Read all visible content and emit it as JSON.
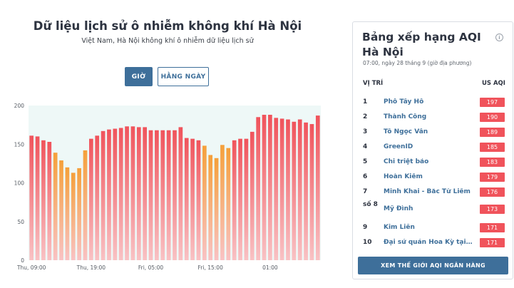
{
  "header": {
    "title": "Dữ liệu lịch sử ô nhiễm không khí Hà Nội",
    "subtitle": "Việt Nam, Hà Nội không khí ô nhiễm dữ liệu lịch sử"
  },
  "toggle": {
    "hour_label": "GIỜ",
    "day_label": "HẰNG NGÀY",
    "active": "hour"
  },
  "chart_data": {
    "type": "bar",
    "title": "",
    "xlabel": "",
    "ylabel": "",
    "ylim": [
      0,
      200
    ],
    "yticks": [
      0,
      50,
      100,
      150,
      200
    ],
    "x_tick_labels": [
      {
        "label": "Thu, 09:00",
        "index": 0
      },
      {
        "label": "Thu, 19:00",
        "index": 10
      },
      {
        "label": "Fri, 05:00",
        "index": 20
      },
      {
        "label": "Fri, 15:00",
        "index": 30
      },
      {
        "label": "01:00",
        "index": 40
      }
    ],
    "values": [
      161,
      160,
      155,
      153,
      139,
      129,
      120,
      113,
      119,
      142,
      157,
      161,
      167,
      169,
      170,
      171,
      173,
      173,
      172,
      172,
      168,
      168,
      168,
      168,
      168,
      172,
      158,
      157,
      155,
      148,
      136,
      132,
      149,
      145,
      155,
      157,
      157,
      166,
      185,
      188,
      188,
      184,
      183,
      182,
      179,
      182,
      178,
      176,
      187
    ],
    "grid": false,
    "legend": "none",
    "colors": {
      "red": "#f0535b",
      "orange": "#f5a03a",
      "background": "#eef8f7"
    }
  },
  "ranking": {
    "title": "Bảng xếp hạng AQI Hà Nội",
    "info_icon": "info-icon",
    "timestamp": "07:00, ngày 28 tháng 9 (giờ địa phương)",
    "col_position": "VỊ TRÍ",
    "col_aqi": "US AQI",
    "rows": [
      {
        "rank": "1",
        "name": "Phố Tây Hồ",
        "aqi": "197"
      },
      {
        "rank": "2",
        "name": "Thành Công",
        "aqi": "190"
      },
      {
        "rank": "3",
        "name": "Tô Ngọc Vân",
        "aqi": "189"
      },
      {
        "rank": "4",
        "name": "GreenID",
        "aqi": "185"
      },
      {
        "rank": "5",
        "name": "Chi triệt bảo",
        "aqi": "183"
      },
      {
        "rank": "6",
        "name": "Hoàn Kiếm",
        "aqi": "179"
      },
      {
        "rank": "7",
        "name": "Minh Khai - Bắc Từ Liêm",
        "aqi": "176"
      },
      {
        "rank": "số 8",
        "name": "Mỹ Đình",
        "aqi": "173"
      },
      {
        "rank": "9",
        "name": "Kim Liên",
        "aqi": "171"
      },
      {
        "rank": "10",
        "name": "Đại sứ quán Hoa Kỳ tại Hà Nội",
        "aqi": "171"
      }
    ],
    "badge_color": "#f0535b",
    "cta_label": "XEM THẾ GIỚI AQI NGÂN HÀNG"
  }
}
